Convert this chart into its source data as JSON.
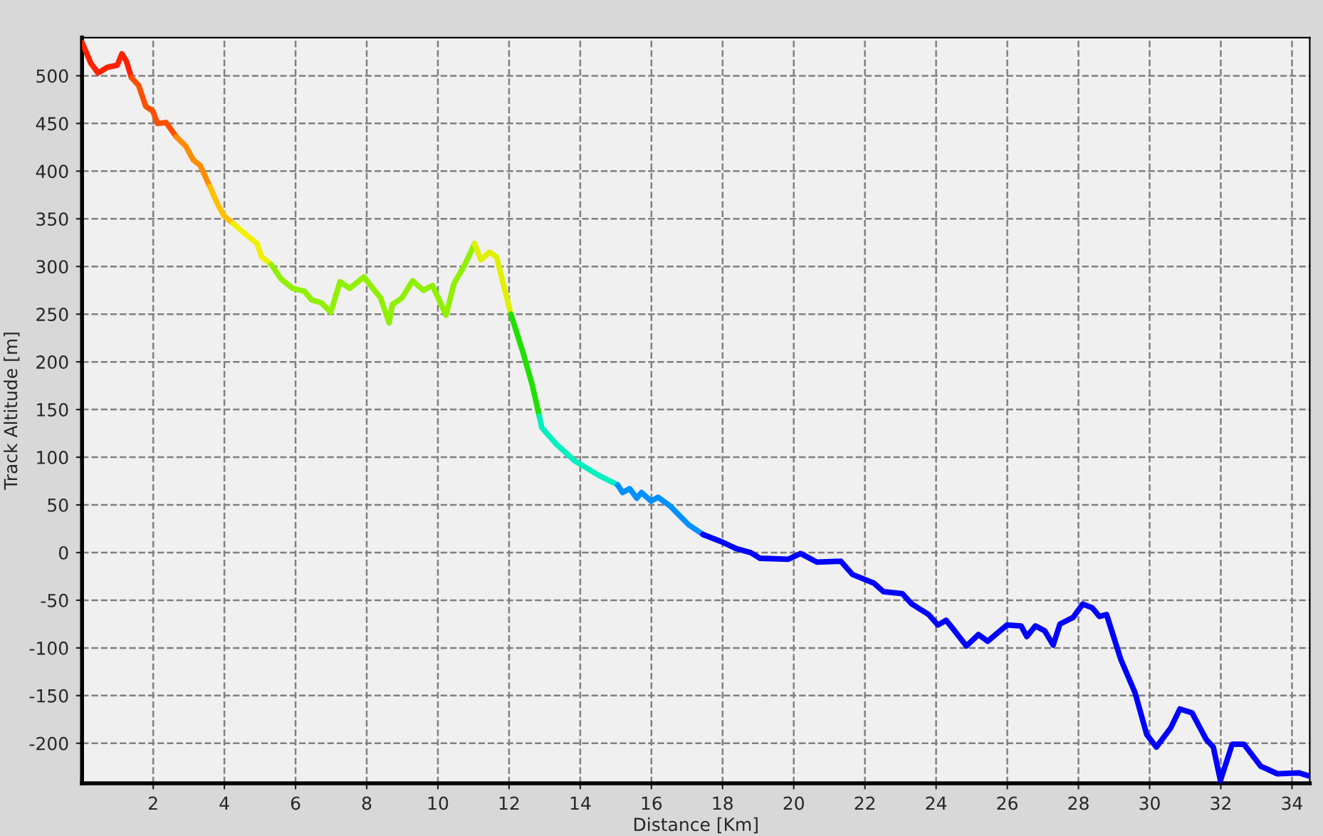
{
  "chart_data": {
    "type": "line",
    "xlabel": "Distance [Km]",
    "ylabel": "Track Altitude [m]",
    "xlim": [
      0,
      34.5
    ],
    "ylim": [
      -242,
      540
    ],
    "xticks": [
      2,
      4,
      6,
      8,
      10,
      12,
      14,
      16,
      18,
      20,
      22,
      24,
      26,
      28,
      30,
      32,
      34
    ],
    "yticks": [
      -200,
      -150,
      -100,
      -50,
      0,
      50,
      100,
      150,
      200,
      250,
      300,
      350,
      400,
      450,
      500
    ],
    "grid": true,
    "line_style": "solid",
    "series": [
      {
        "color": "#ff2000",
        "x": [
          0,
          0.25,
          0.45,
          0.72,
          0.99,
          1.12,
          1.25,
          1.39
        ],
        "values": [
          535,
          513,
          503,
          509,
          511,
          523,
          515,
          498
        ]
      },
      {
        "color": "#ff5000",
        "x": [
          1.39,
          1.59,
          1.79,
          1.99,
          2.12,
          2.36,
          2.65
        ],
        "values": [
          498,
          490,
          468,
          463,
          450,
          451,
          436
        ]
      },
      {
        "color": "#ff8c00",
        "x": [
          2.65,
          2.92,
          3.12,
          3.32,
          3.59
        ],
        "values": [
          436,
          426,
          412,
          406,
          384
        ]
      },
      {
        "color": "#ffc000",
        "x": [
          3.59,
          3.79,
          3.99,
          4.25
        ],
        "values": [
          384,
          367,
          353,
          345
        ]
      },
      {
        "color": "#f0f000",
        "x": [
          4.25,
          4.59,
          4.92,
          5.05,
          5.32
        ],
        "values": [
          345,
          334,
          324,
          310,
          302
        ]
      },
      {
        "color": "#90f000",
        "x": [
          5.32,
          5.59,
          5.92,
          6.25,
          6.45,
          6.72,
          6.99,
          7.25,
          7.52,
          7.92,
          8.39,
          8.63,
          8.72,
          8.99,
          9.29,
          9.59,
          9.85,
          10.23,
          10.45,
          10.76,
          11.03
        ],
        "values": [
          302,
          287,
          277,
          274,
          265,
          262,
          252,
          284,
          277,
          289,
          267,
          241,
          260,
          267,
          285,
          275,
          280,
          249,
          282,
          302,
          324
        ]
      },
      {
        "color": "#e0f000",
        "x": [
          11.03,
          11.21,
          11.45,
          11.65,
          12.05
        ],
        "values": [
          324,
          307,
          315,
          310,
          250
        ]
      },
      {
        "color": "#20e000",
        "x": [
          12.05,
          12.39,
          12.65,
          12.85
        ],
        "values": [
          250,
          210,
          176,
          143
        ]
      },
      {
        "color": "#00f0c0",
        "x": [
          12.85,
          12.92,
          13.32,
          13.85,
          14.52,
          15.05
        ],
        "values": [
          143,
          131,
          114,
          96,
          81,
          71
        ]
      },
      {
        "color": "#0090ff",
        "x": [
          15.05,
          15.19,
          15.39,
          15.59,
          15.72,
          15.99,
          16.19,
          16.52,
          17.05,
          17.45
        ],
        "values": [
          71,
          63,
          67,
          57,
          63,
          54,
          58,
          49,
          29,
          19
        ]
      },
      {
        "color": "#0000ff",
        "x": [
          17.45,
          17.99,
          18.39,
          18.79,
          19.05,
          19.85,
          20.19,
          20.65,
          21.32,
          21.65,
          22.25,
          22.52,
          23.05,
          23.32,
          23.79,
          24.05,
          24.28,
          24.52,
          24.85,
          25.19,
          25.45,
          25.99,
          26.39,
          26.55,
          26.79,
          27.05,
          27.29,
          27.48,
          27.85,
          28.12,
          28.39,
          28.59,
          28.79,
          29.19,
          29.59,
          29.92,
          30.19,
          30.59,
          30.85,
          31.19,
          31.59,
          31.79,
          31.99,
          32.32,
          32.65,
          33.12,
          33.59,
          34.19,
          34.45
        ],
        "values": [
          19,
          11,
          4,
          0,
          -6,
          -7,
          -1,
          -10,
          -9,
          -23,
          -32,
          -41,
          -43,
          -54,
          -65,
          -76,
          -71,
          -82,
          -98,
          -86,
          -93,
          -76,
          -77,
          -88,
          -77,
          -82,
          -97,
          -75,
          -68,
          -54,
          -58,
          -67,
          -65,
          -112,
          -147,
          -191,
          -204,
          -184,
          -164,
          -168,
          -196,
          -204,
          -239,
          -201,
          -201,
          -224,
          -232,
          -231,
          -234
        ]
      }
    ]
  }
}
